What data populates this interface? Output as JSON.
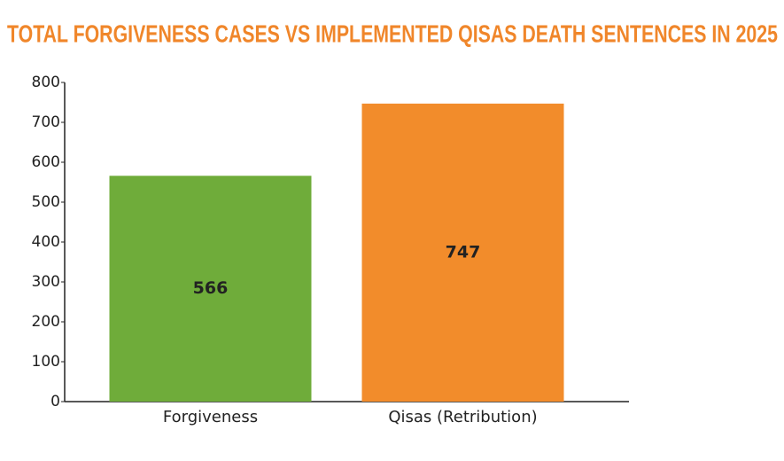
{
  "chart_data": {
    "type": "bar",
    "title": "TOTAL FORGIVENESS CASES VS IMPLEMENTED QISAS DEATH SENTENCES IN 2025",
    "categories": [
      "Forgiveness",
      "Qisas (Retribution)"
    ],
    "values": [
      566,
      747
    ],
    "colors": [
      "#6fac3a",
      "#f28c2b"
    ],
    "ylim": [
      0,
      800
    ],
    "yticks": [
      0,
      100,
      200,
      300,
      400,
      500,
      600,
      700,
      800
    ],
    "grid": false
  }
}
